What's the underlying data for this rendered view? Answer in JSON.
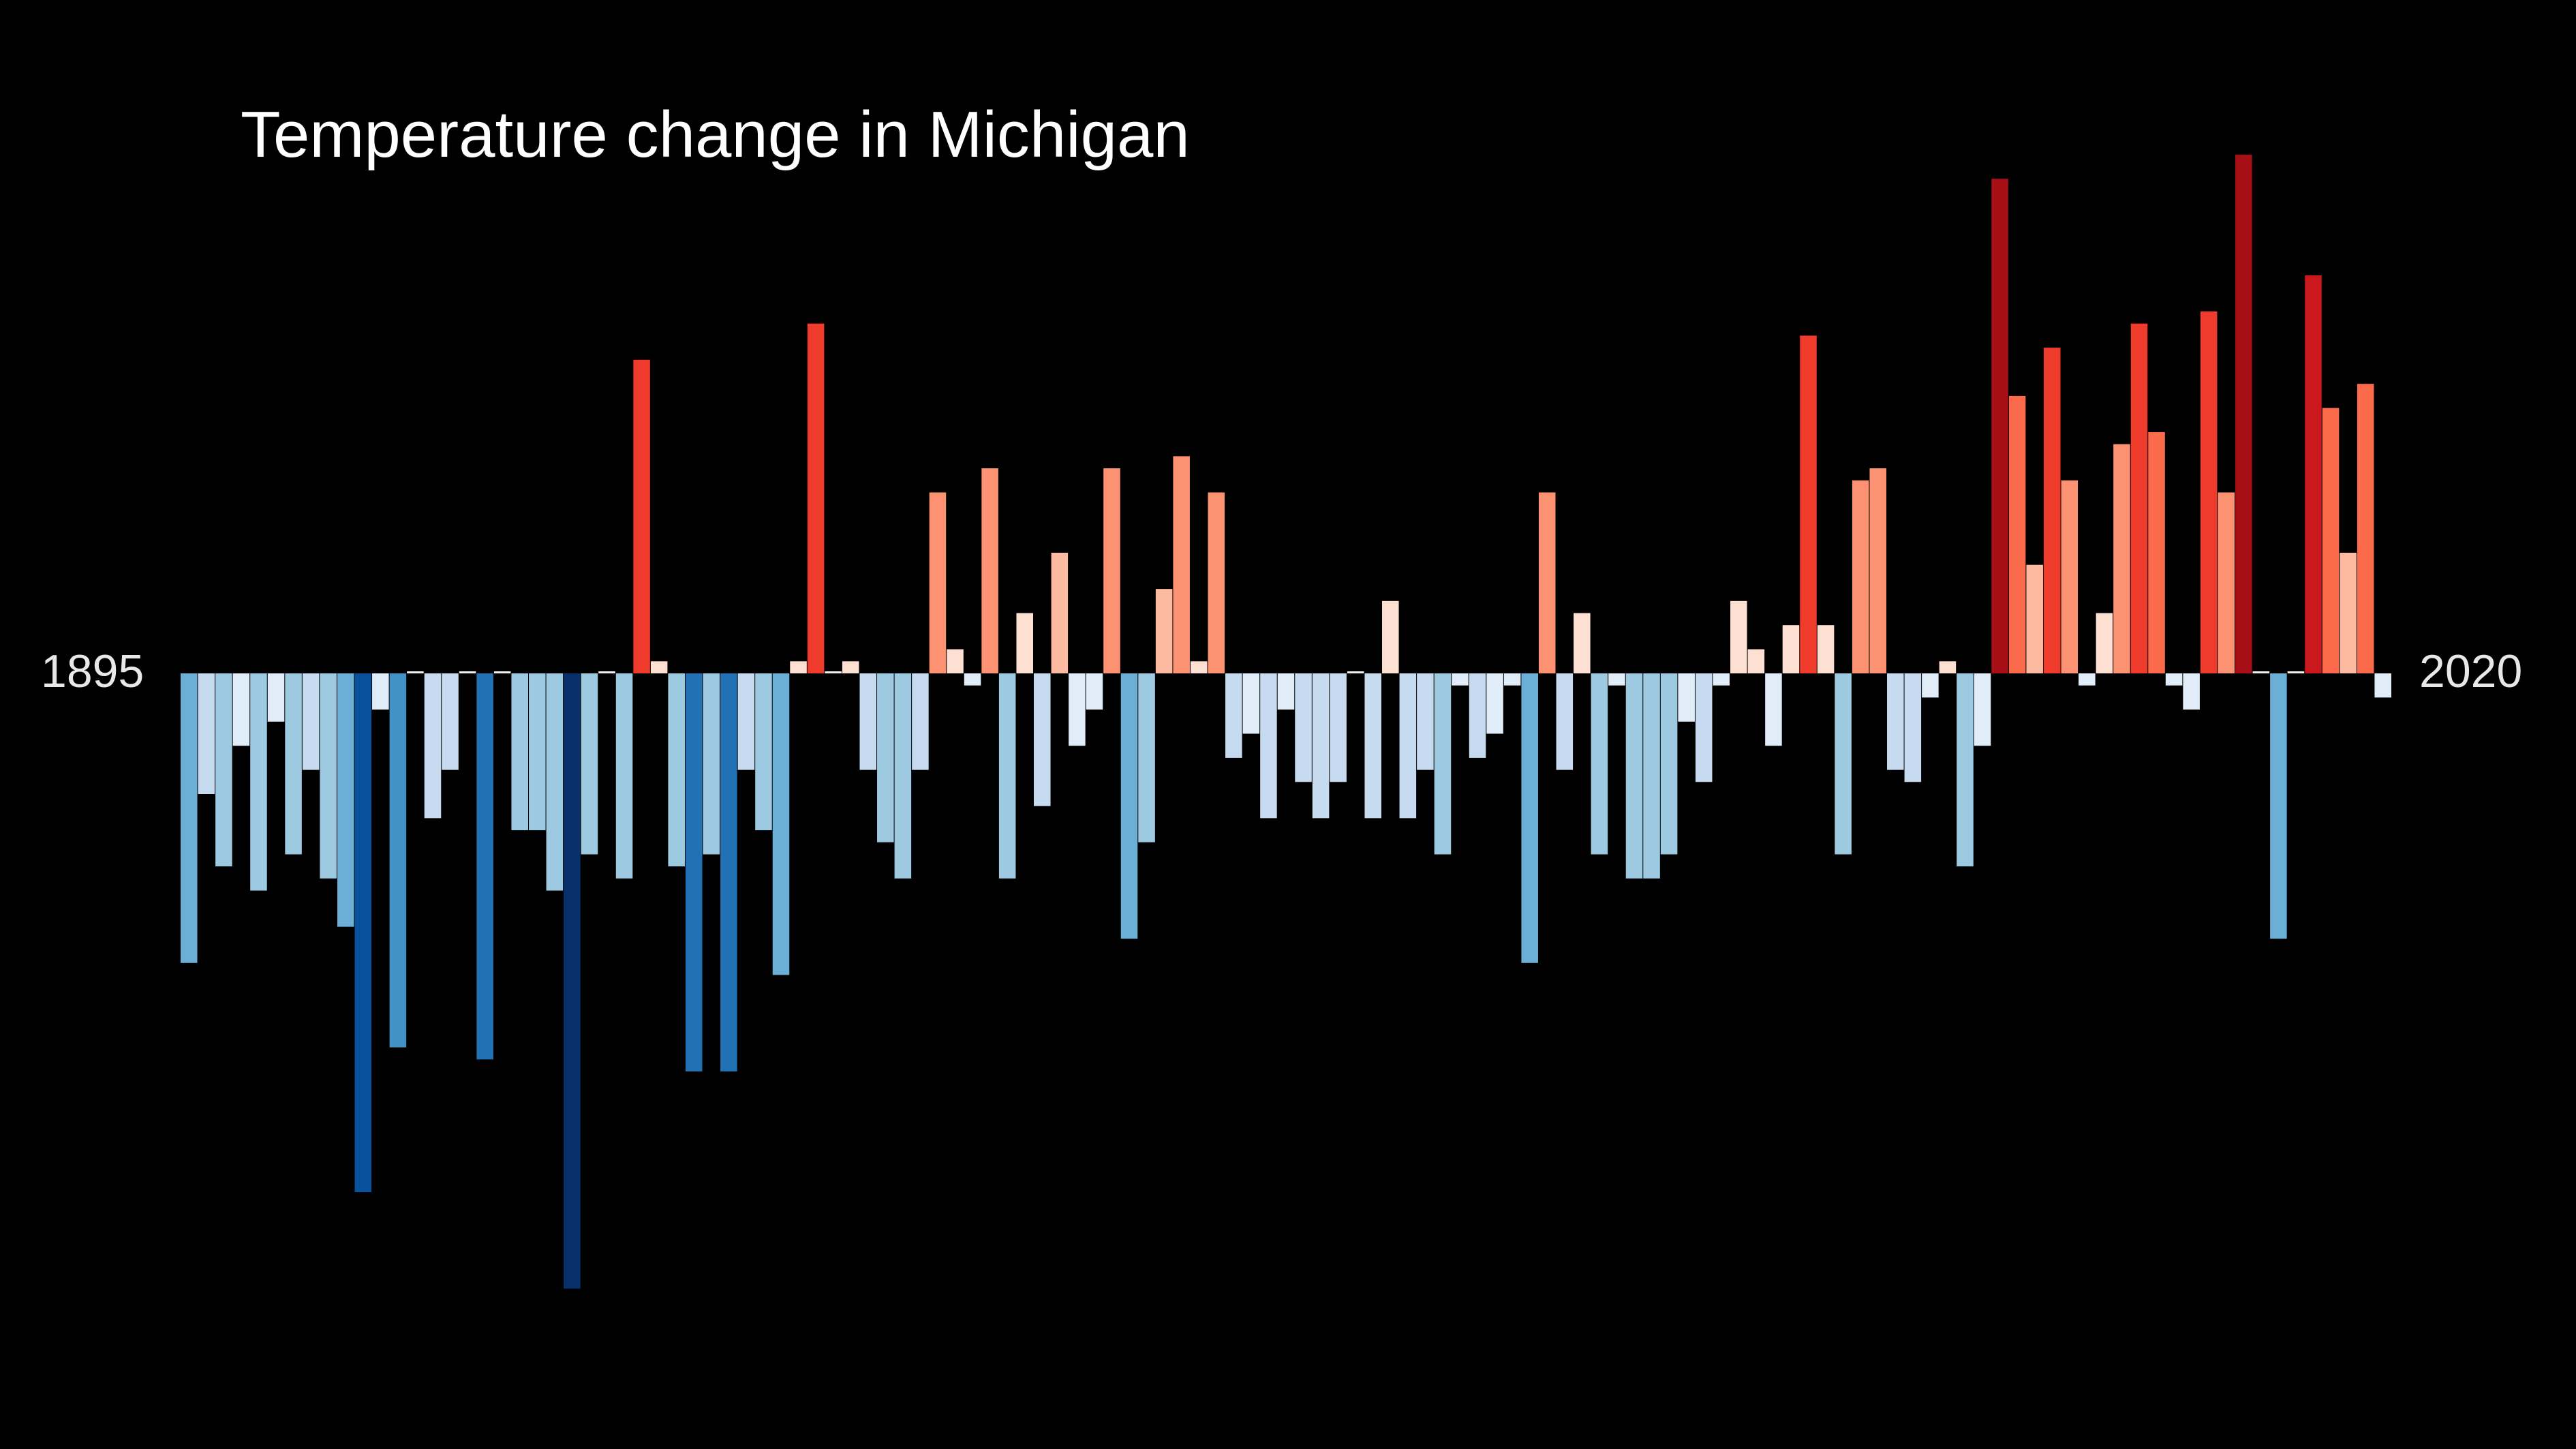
{
  "chart_data": {
    "type": "bar",
    "title": "Temperature change in Michigan",
    "start_label": "1895",
    "end_label": "2020",
    "first_year": 1895,
    "last_year": 2020,
    "baseline": 0,
    "ylim": [
      -10.2,
      8.6
    ],
    "grid": false,
    "legend": "none",
    "values": [
      -4.8,
      -2.0,
      -3.2,
      -1.2,
      -3.6,
      -0.8,
      -3.0,
      -1.6,
      -3.4,
      -4.2,
      -8.6,
      -0.6,
      -6.2,
      0.0,
      -2.4,
      -1.6,
      0.0,
      -6.4,
      0.0,
      -2.6,
      -2.6,
      -3.6,
      -10.2,
      -3.0,
      0.0,
      -3.4,
      5.2,
      0.2,
      -3.2,
      -6.6,
      -3.0,
      -6.6,
      -1.6,
      -2.6,
      -5.0,
      0.2,
      5.8,
      0.0,
      0.2,
      -1.6,
      -2.8,
      -3.4,
      -1.6,
      3.0,
      0.4,
      -0.2,
      3.4,
      -3.4,
      1.0,
      -2.2,
      2.0,
      -1.2,
      -0.6,
      3.4,
      -4.4,
      -2.8,
      1.4,
      3.6,
      0.2,
      3.0,
      -1.4,
      -1.0,
      -2.4,
      -0.6,
      -1.8,
      -2.4,
      -1.8,
      0.0,
      -2.4,
      1.2,
      -2.4,
      -1.6,
      -3.0,
      -0.2,
      -1.4,
      -1.0,
      -0.2,
      -4.8,
      3.0,
      -1.6,
      1.0,
      -3.0,
      -0.2,
      -3.4,
      -3.4,
      -3.0,
      -0.8,
      -1.8,
      -0.2,
      1.2,
      0.4,
      -1.2,
      0.8,
      5.6,
      0.8,
      -3.0,
      3.2,
      3.4,
      -1.6,
      -1.8,
      -0.4,
      0.2,
      -3.2,
      -1.2,
      8.2,
      4.6,
      1.8,
      5.4,
      3.2,
      -0.2,
      1.0,
      3.8,
      5.8,
      4.0,
      -0.2,
      -0.6,
      6.0,
      3.0,
      8.6,
      0.0,
      -4.4,
      0.0,
      6.6,
      4.4,
      2.0,
      4.8,
      -0.4
    ]
  }
}
